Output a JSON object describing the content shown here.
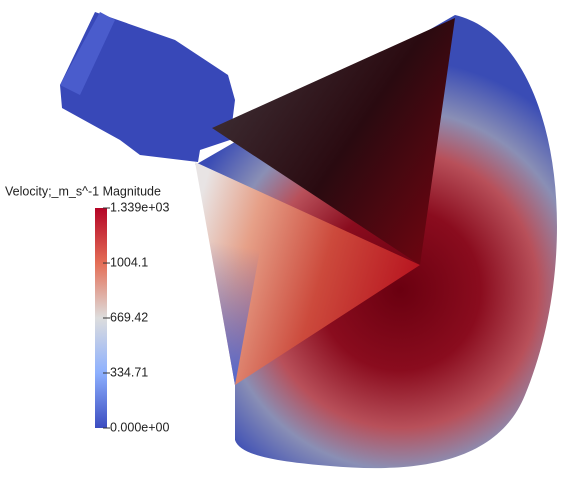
{
  "legend": {
    "title": "Velocity;_m_s^-1 Magnitude",
    "ticks": [
      {
        "value": 0,
        "label": "0.000e+00"
      },
      334.71,
      669.42,
      1004.1,
      {
        "value": 1339,
        "label": "1.339e+03"
      }
    ]
  }
}
